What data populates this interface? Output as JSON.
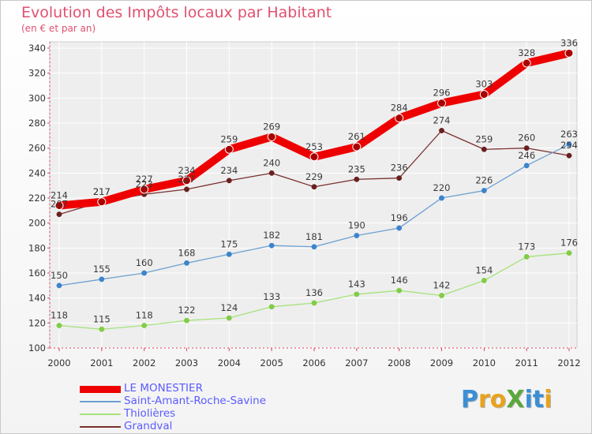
{
  "title": "Evolution des Impôts locaux par Habitant",
  "subtitle": "(en € et par an)",
  "logo": {
    "text": "ProXiti",
    "letter_colors": [
      "#3a8fd6",
      "#e8a21c",
      "#e8a21c",
      "#5aa83a",
      "#3a8fd6",
      "#3a8fd6",
      "#e8a21c"
    ]
  },
  "chart_data": {
    "type": "line",
    "categories": [
      "2000",
      "2001",
      "2002",
      "2003",
      "2004",
      "2005",
      "2006",
      "2007",
      "2008",
      "2009",
      "2010",
      "2011",
      "2012"
    ],
    "y_ticks": [
      "100",
      "120",
      "140",
      "160",
      "180",
      "200",
      "220",
      "240",
      "260",
      "280",
      "300",
      "320",
      "340"
    ],
    "ylim": [
      100,
      340
    ],
    "grid": true,
    "series": [
      {
        "name": "LE MONESTIER",
        "values": [
          214,
          217,
          227,
          234,
          259,
          269,
          253,
          261,
          284,
          296,
          303,
          328,
          336
        ],
        "labels": [
          "214",
          "217",
          "227",
          "234",
          "259",
          "269",
          "253",
          "261",
          "284",
          "296",
          "303",
          "328",
          "336"
        ],
        "color": "#ee0000"
      },
      {
        "name": "Saint-Amant-Roche-Savine",
        "values": [
          150,
          155,
          160,
          168,
          175,
          182,
          181,
          190,
          196,
          220,
          226,
          246,
          263
        ],
        "labels": [
          "150",
          "155",
          "160",
          "168",
          "175",
          "182",
          "181",
          "190",
          "196",
          "220",
          "226",
          "246",
          "263"
        ],
        "color": "#6c9fd2",
        "marker": "#3c84cc"
      },
      {
        "name": "Thiolières",
        "values": [
          118,
          115,
          118,
          122,
          124,
          133,
          136,
          143,
          146,
          142,
          154,
          173,
          176
        ],
        "labels": [
          "118",
          "115",
          "118",
          "122",
          "124",
          "133",
          "136",
          "143",
          "146",
          "142",
          "154",
          "173",
          "176"
        ],
        "color": "#a6e27c",
        "marker": "#82cc46"
      },
      {
        "name": "Grandval",
        "values": [
          207,
          217,
          223,
          227,
          234,
          240,
          229,
          235,
          236,
          274,
          259,
          260,
          254
        ],
        "labels": [
          "207",
          "217",
          "223",
          "227",
          "234",
          "240",
          "229",
          "235",
          "236",
          "274",
          "259",
          "260",
          "254"
        ],
        "color": "#7a3030",
        "marker": "#6a2020"
      }
    ]
  }
}
